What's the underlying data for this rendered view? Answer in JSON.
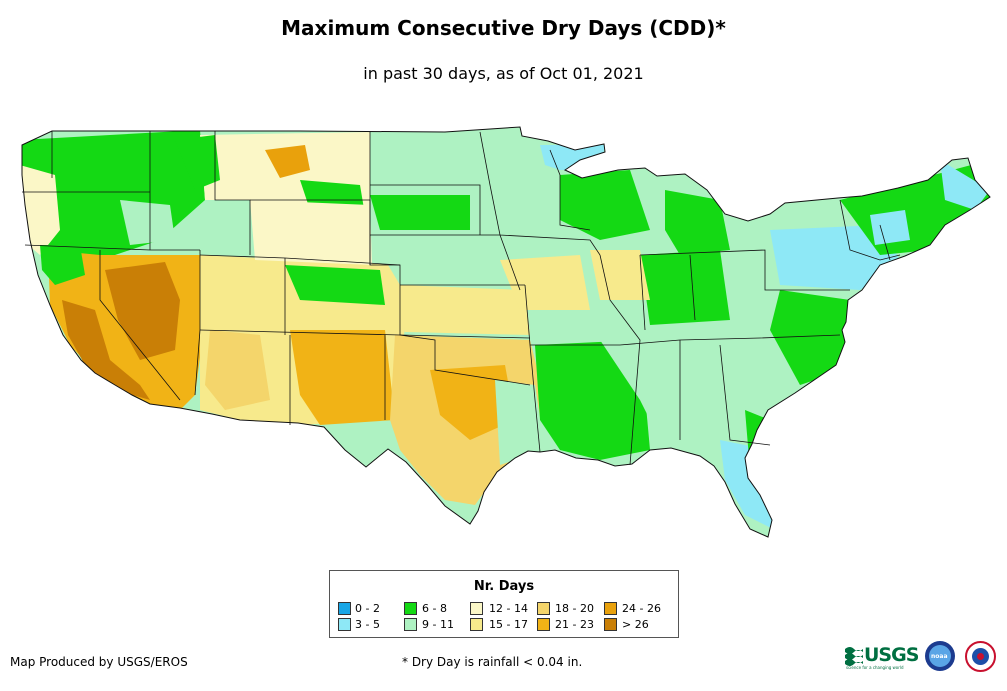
{
  "title": "Maximum Consecutive Dry Days (CDD)*",
  "subtitle": "in past 30 days, as of Oct 01, 2021",
  "legend": {
    "title": "Nr. Days",
    "items": [
      {
        "label": "0 - 2",
        "color": "#18a6e6"
      },
      {
        "label": "3 - 5",
        "color": "#8ee8f6"
      },
      {
        "label": "6 - 8",
        "color": "#14d914"
      },
      {
        "label": "9 - 11",
        "color": "#aef2c2"
      },
      {
        "label": "12 - 14",
        "color": "#fbf7c7"
      },
      {
        "label": "15 - 17",
        "color": "#f7ea8c"
      },
      {
        "label": "18 - 20",
        "color": "#f4d56b"
      },
      {
        "label": "21 - 23",
        "color": "#f1b316"
      },
      {
        "label": "24 - 26",
        "color": "#e9a10c"
      },
      {
        "label": "> 26",
        "color": "#c97f06"
      }
    ]
  },
  "footer": {
    "credit": "Map Produced by USGS/EROS",
    "footnote": "* Dry Day is rainfall < 0.04 in."
  },
  "logos": {
    "usgs": "USGS",
    "usgs_tagline": "science for a changing world",
    "noaa": "noaa"
  },
  "colors": {
    "state_border": "#111111",
    "background": "#ffffff"
  }
}
